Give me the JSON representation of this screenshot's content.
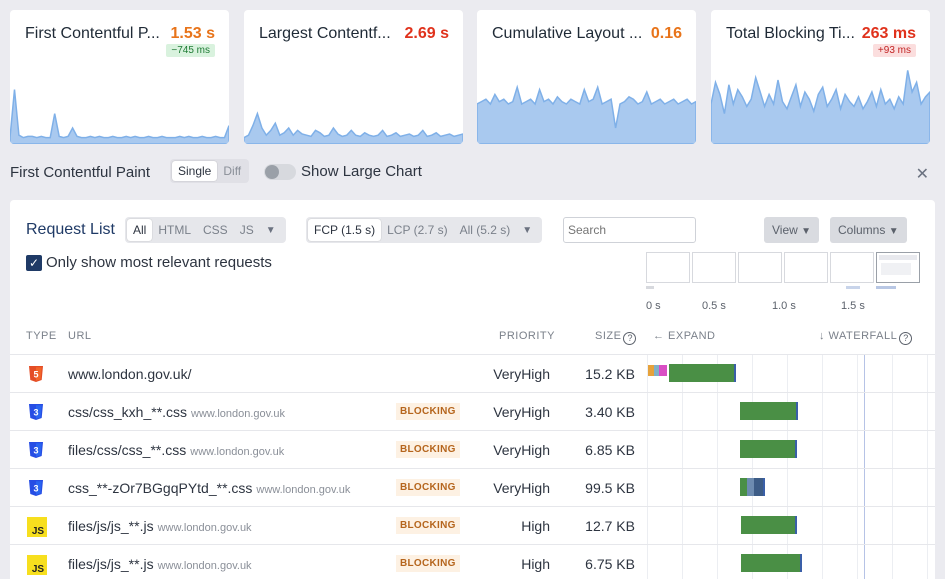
{
  "metrics": [
    {
      "title": "First Contentful Paint",
      "title_display": "First Contentful P...",
      "value": "1.53 s",
      "color": "#e8741a",
      "delta": "−745 ms",
      "delta_type": "good",
      "spark": [
        2,
        42,
        4,
        2,
        3,
        3,
        2,
        3,
        2,
        2,
        22,
        3,
        2,
        3,
        10,
        3,
        2,
        2,
        3,
        2,
        3,
        2,
        2,
        3,
        2,
        2,
        3,
        2,
        3,
        2,
        2,
        3,
        2,
        2,
        3,
        2,
        2,
        2,
        3,
        2,
        3,
        2,
        2,
        3,
        2,
        2,
        3,
        2,
        2,
        12
      ]
    },
    {
      "title": "Largest Contentful Paint",
      "title_display": "Largest Contentf...",
      "value": "2.69 s",
      "color": "#e0321c",
      "delta": "",
      "delta_type": "",
      "spark": [
        2,
        4,
        12,
        22,
        10,
        4,
        8,
        14,
        4,
        6,
        10,
        4,
        8,
        5,
        4,
        3,
        8,
        6,
        3,
        4,
        10,
        5,
        3,
        4,
        8,
        4,
        3,
        6,
        4,
        3,
        4,
        8,
        3,
        4,
        6,
        3,
        4,
        5,
        3,
        4,
        8,
        3,
        4,
        6,
        3,
        4,
        5,
        3,
        4,
        5
      ]
    },
    {
      "title": "Cumulative Layout Shift",
      "title_display": "Cumulative Layout ...",
      "value": "0.16",
      "color": "#e8741a",
      "delta": "",
      "delta_type": "",
      "spark": [
        30,
        32,
        34,
        30,
        38,
        32,
        34,
        30,
        32,
        44,
        30,
        32,
        34,
        30,
        42,
        32,
        34,
        30,
        36,
        32,
        30,
        34,
        32,
        30,
        42,
        32,
        34,
        44,
        30,
        32,
        34,
        10,
        30,
        32,
        36,
        34,
        30,
        32,
        40,
        30,
        32,
        34,
        30,
        32,
        34,
        30,
        32,
        34,
        30,
        32
      ]
    },
    {
      "title": "Total Blocking Time",
      "title_display": "Total Blocking Ti...",
      "value": "263 ms",
      "color": "#e0321c",
      "delta": "+93 ms",
      "delta_type": "bad",
      "spark": [
        30,
        48,
        38,
        22,
        46,
        30,
        42,
        36,
        28,
        34,
        52,
        40,
        28,
        38,
        30,
        50,
        32,
        26,
        36,
        46,
        28,
        40,
        34,
        24,
        38,
        44,
        28,
        34,
        42,
        26,
        38,
        32,
        28,
        36,
        26,
        32,
        40,
        28,
        42,
        30,
        34,
        26,
        36,
        30,
        58,
        40,
        48,
        30,
        36,
        40
      ]
    }
  ],
  "filter_bar": {
    "label": "First Contentful Paint",
    "modes": [
      "Single",
      "Diff"
    ],
    "active_mode": "Single",
    "toggle_label": "Show Large Chart"
  },
  "request_list": {
    "title": "Request List",
    "type_filters": [
      "All",
      "HTML",
      "CSS",
      "JS"
    ],
    "active_type": "All",
    "timing_filters": [
      "FCP (1.5 s)",
      "LCP (2.7 s)",
      "All (5.2 s)"
    ],
    "active_timing": "FCP (1.5 s)",
    "search_placeholder": "Search",
    "view_label": "View",
    "columns_label": "Columns",
    "checkbox_label": "Only show most relevant requests",
    "ticks": [
      "0 s",
      "0.5 s",
      "1.0 s",
      "1.5 s"
    ],
    "headers": {
      "type": "TYPE",
      "url": "URL",
      "priority": "PRIORITY",
      "size": "SIZE",
      "expand": "← EXPAND",
      "waterfall": "↓ WATERFALL"
    },
    "rows": [
      {
        "type": "html",
        "url": "www.london.gov.uk/",
        "host": "",
        "blocking": "",
        "priority": "VeryHigh",
        "size": "15.2 KB",
        "start": 0.0,
        "end": 0.63
      },
      {
        "type": "css",
        "url": "css/css_kxh_**.css",
        "host": "www.london.gov.uk",
        "blocking": "BLOCKING",
        "priority": "VeryHigh",
        "size": "3.40 KB",
        "start": 0.66,
        "end": 1.08
      },
      {
        "type": "css",
        "url": "files/css/css_**.css",
        "host": "www.london.gov.uk",
        "blocking": "BLOCKING",
        "priority": "VeryHigh",
        "size": "6.85 KB",
        "start": 0.66,
        "end": 1.07
      },
      {
        "type": "css",
        "url": "css_**-zOr7BGgqPYtd_**.css",
        "host": "www.london.gov.uk",
        "blocking": "BLOCKING",
        "priority": "VeryHigh",
        "size": "99.5 KB",
        "start": 0.66,
        "end": 0.84
      },
      {
        "type": "js",
        "url": "files/js/js_**.js",
        "host": "www.london.gov.uk",
        "blocking": "BLOCKING",
        "priority": "High",
        "size": "12.7 KB",
        "start": 0.67,
        "end": 1.07
      },
      {
        "type": "js",
        "url": "files/js/js_**.js",
        "host": "www.london.gov.uk",
        "blocking": "BLOCKING",
        "priority": "High",
        "size": "6.75 KB",
        "start": 0.67,
        "end": 1.11
      }
    ]
  }
}
